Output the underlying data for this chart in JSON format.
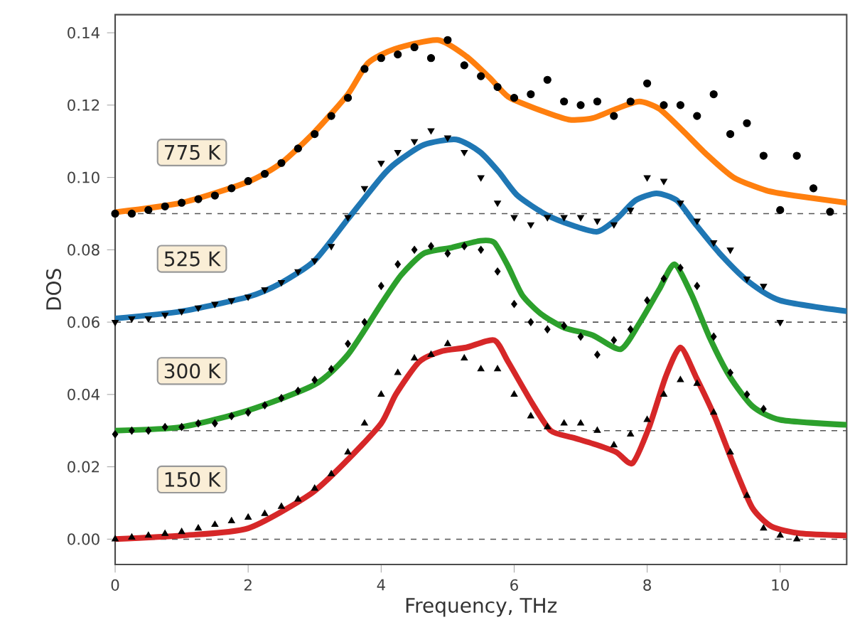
{
  "chart_data": {
    "type": "line",
    "xlabel": "Frequency, THz",
    "ylabel": "DOS",
    "xlim": [
      0,
      11
    ],
    "ylim": [
      -0.007,
      0.145
    ],
    "xticks": [
      0,
      2,
      4,
      6,
      8,
      10
    ],
    "yticks": [
      {
        "value": 0,
        "label": "0.00"
      },
      {
        "value": 0.02,
        "label": "0.02"
      },
      {
        "value": 0.04,
        "label": "0.04"
      },
      {
        "value": 0.06,
        "label": "0.06"
      },
      {
        "value": 0.08,
        "label": "0.08"
      },
      {
        "value": 0.1,
        "label": "0.10"
      },
      {
        "value": 0.12,
        "label": "0.12"
      },
      {
        "value": 0.14,
        "label": "0.14"
      }
    ],
    "ref_lines": [
      {
        "axis": "y",
        "value": 0,
        "color": "#555555",
        "line_style": "dashed"
      },
      {
        "axis": "y",
        "value": 0.03,
        "color": "#555555",
        "line_style": "dashed"
      },
      {
        "axis": "y",
        "value": 0.06,
        "color": "#555555",
        "line_style": "dashed"
      },
      {
        "axis": "y",
        "value": 0.09,
        "color": "#555555",
        "line_style": "dashed"
      }
    ],
    "series": [
      {
        "type": "scatter",
        "marker": "triangle",
        "color": "#000000",
        "x": [
          0,
          0.25,
          0.5,
          0.75,
          1,
          1.25,
          1.5,
          1.75,
          2,
          2.25,
          2.5,
          2.75,
          3,
          3.25,
          3.5,
          3.75,
          4,
          4.25,
          4.5,
          4.75,
          5,
          5.25,
          5.5,
          5.75,
          6,
          6.25,
          6.5,
          6.75,
          7,
          7.25,
          7.5,
          7.75,
          8,
          8.25,
          8.5,
          8.75,
          9,
          9.25,
          9.5,
          9.75,
          10,
          10.25
        ],
        "values": [
          0,
          0.0005,
          0.001,
          0.0015,
          0.002,
          0.003,
          0.004,
          0.005,
          0.006,
          0.007,
          0.009,
          0.011,
          0.014,
          0.018,
          0.024,
          0.032,
          0.04,
          0.046,
          0.05,
          0.051,
          0.054,
          0.05,
          0.047,
          0.047,
          0.04,
          0.034,
          0.031,
          0.032,
          0.032,
          0.03,
          0.026,
          0.029,
          0.033,
          0.04,
          0.044,
          0.043,
          0.035,
          0.024,
          0.012,
          0.003,
          0.001,
          0
        ]
      },
      {
        "type": "scatter",
        "marker": "diamond",
        "color": "#000000",
        "x": [
          0,
          0.25,
          0.5,
          0.75,
          1,
          1.25,
          1.5,
          1.75,
          2,
          2.25,
          2.5,
          2.75,
          3,
          3.25,
          3.5,
          3.75,
          4,
          4.25,
          4.5,
          4.75,
          5,
          5.25,
          5.5,
          5.75,
          6,
          6.25,
          6.5,
          6.75,
          7,
          7.25,
          7.5,
          7.75,
          8,
          8.25,
          8.5,
          8.75,
          9,
          9.25,
          9.5,
          9.75
        ],
        "values": [
          0.029,
          0.03,
          0.03,
          0.031,
          0.031,
          0.032,
          0.032,
          0.034,
          0.035,
          0.037,
          0.039,
          0.041,
          0.044,
          0.047,
          0.054,
          0.06,
          0.07,
          0.076,
          0.08,
          0.081,
          0.079,
          0.081,
          0.08,
          0.074,
          0.065,
          0.06,
          0.058,
          0.059,
          0.056,
          0.051,
          0.055,
          0.058,
          0.066,
          0.072,
          0.075,
          0.07,
          0.056,
          0.046,
          0.04,
          0.036
        ]
      },
      {
        "type": "scatter",
        "marker": "triangle-down",
        "color": "#000000",
        "x": [
          0,
          0.25,
          0.5,
          0.75,
          1,
          1.25,
          1.5,
          1.75,
          2,
          2.25,
          2.5,
          2.75,
          3,
          3.25,
          3.5,
          3.75,
          4,
          4.25,
          4.5,
          4.75,
          5,
          5.25,
          5.5,
          5.75,
          6,
          6.25,
          6.5,
          6.75,
          7,
          7.25,
          7.5,
          7.75,
          8,
          8.25,
          8.5,
          8.75,
          9,
          9.25,
          9.5,
          9.75,
          10
        ],
        "values": [
          0.06,
          0.061,
          0.061,
          0.062,
          0.063,
          0.064,
          0.065,
          0.066,
          0.067,
          0.069,
          0.071,
          0.074,
          0.077,
          0.081,
          0.089,
          0.097,
          0.104,
          0.107,
          0.11,
          0.113,
          0.111,
          0.107,
          0.1,
          0.093,
          0.089,
          0.087,
          0.089,
          0.089,
          0.089,
          0.088,
          0.087,
          0.091,
          0.1,
          0.099,
          0.093,
          0.088,
          0.082,
          0.08,
          0.072,
          0.07,
          0.06
        ]
      },
      {
        "type": "scatter",
        "marker": "circle",
        "color": "#000000",
        "x": [
          0,
          0.25,
          0.5,
          0.75,
          1,
          1.25,
          1.5,
          1.75,
          2,
          2.25,
          2.5,
          2.75,
          3,
          3.25,
          3.5,
          3.75,
          4,
          4.25,
          4.5,
          4.75,
          5,
          5.25,
          5.5,
          5.75,
          6,
          6.25,
          6.5,
          6.75,
          7,
          7.25,
          7.5,
          7.75,
          8,
          8.25,
          8.5,
          8.75,
          9,
          9.25,
          9.5,
          9.75,
          10,
          10.25,
          10.5,
          10.75
        ],
        "values": [
          0.09,
          0.09,
          0.091,
          0.092,
          0.093,
          0.094,
          0.095,
          0.097,
          0.099,
          0.101,
          0.104,
          0.108,
          0.112,
          0.117,
          0.122,
          0.13,
          0.133,
          0.134,
          0.136,
          0.133,
          0.138,
          0.131,
          0.128,
          0.125,
          0.122,
          0.123,
          0.127,
          0.121,
          0.12,
          0.121,
          0.117,
          0.121,
          0.126,
          0.12,
          0.12,
          0.117,
          0.123,
          0.112,
          0.115,
          0.106,
          0.091,
          0.106,
          0.097,
          0.0905
        ]
      },
      {
        "name": "150 K",
        "color": "#d62728",
        "line_style": "solid",
        "x": [
          0,
          1,
          2,
          2.94,
          3.5,
          4,
          4.22,
          4.57,
          4.92,
          5.28,
          5.7,
          5.91,
          6.27,
          6.55,
          6.9,
          7.25,
          7.54,
          7.78,
          8.03,
          8.28,
          8.5,
          8.73,
          9.02,
          9.3,
          9.58,
          9.87,
          10.3,
          11
        ],
        "values": [
          0,
          0.001,
          0.003,
          0.0125,
          0.022,
          0.032,
          0.04,
          0.049,
          0.052,
          0.053,
          0.055,
          0.049,
          0.0376,
          0.03,
          0.028,
          0.026,
          0.024,
          0.021,
          0.031,
          0.045,
          0.053,
          0.045,
          0.0337,
          0.0205,
          0.0087,
          0.0035,
          0.0016,
          0.001
        ]
      },
      {
        "name": "300 K",
        "color": "#2ca02c",
        "line_style": "solid",
        "x": [
          0,
          1,
          2,
          3,
          3.5,
          4,
          4.3,
          4.64,
          5.06,
          5.49,
          5.7,
          5.91,
          6.12,
          6.4,
          6.76,
          7.18,
          7.6,
          7.88,
          8.18,
          8.41,
          8.67,
          8.94,
          9.24,
          9.58,
          10,
          11
        ],
        "values": [
          0.03,
          0.031,
          0.0356,
          0.0427,
          0.051,
          0.065,
          0.073,
          0.079,
          0.0806,
          0.0825,
          0.082,
          0.0754,
          0.0675,
          0.0623,
          0.0584,
          0.0564,
          0.0525,
          0.0596,
          0.069,
          0.076,
          0.0675,
          0.0557,
          0.045,
          0.0368,
          0.033,
          0.0316
        ]
      },
      {
        "name": "525 K",
        "color": "#1f77b4",
        "line_style": "solid",
        "x": [
          0,
          1,
          2,
          2.5,
          3,
          3.5,
          4,
          4.22,
          4.64,
          5.13,
          5.49,
          5.77,
          6.05,
          6.48,
          6.9,
          7.25,
          7.54,
          7.82,
          8.14,
          8.45,
          8.73,
          9.09,
          9.51,
          10,
          11
        ],
        "values": [
          0.061,
          0.063,
          0.067,
          0.0709,
          0.077,
          0.0885,
          0.1,
          0.104,
          0.109,
          0.1105,
          0.107,
          0.1015,
          0.095,
          0.0897,
          0.0866,
          0.085,
          0.0885,
          0.0936,
          0.0956,
          0.0936,
          0.087,
          0.079,
          0.0714,
          0.066,
          0.063
        ]
      },
      {
        "name": "775 K",
        "color": "#ff7f0e",
        "line_style": "solid",
        "x": [
          0,
          1,
          2,
          2.5,
          3,
          3.5,
          3.8,
          4.2,
          4.85,
          5.28,
          5.63,
          5.91,
          6.33,
          6.82,
          7.18,
          7.54,
          7.88,
          8.18,
          8.52,
          8.88,
          9.3,
          9.79,
          10.2,
          11
        ],
        "values": [
          0.0904,
          0.093,
          0.0988,
          0.104,
          0.1126,
          0.123,
          0.1316,
          0.1355,
          0.138,
          0.1335,
          0.1276,
          0.1223,
          0.119,
          0.116,
          0.1164,
          0.119,
          0.121,
          0.119,
          0.1132,
          0.1066,
          0.1,
          0.0964,
          0.095,
          0.093
        ]
      }
    ]
  }
}
